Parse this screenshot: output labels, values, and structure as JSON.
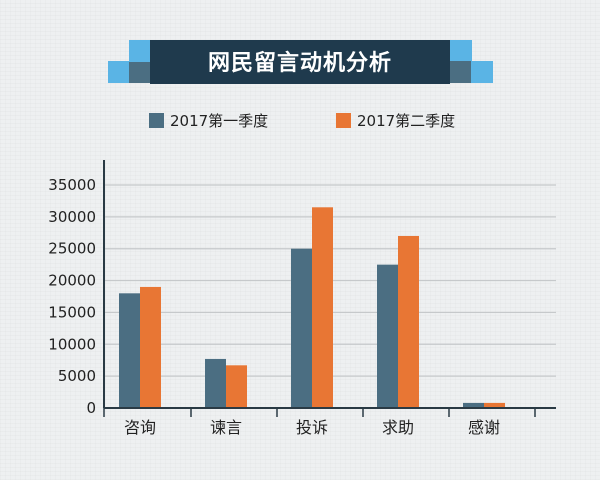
{
  "chart_data": {
    "type": "bar",
    "title": "网民留言动机分析",
    "categories": [
      "咨询",
      "谏言",
      "投诉",
      "求助",
      "感谢"
    ],
    "series": [
      {
        "name": "2017第一季度",
        "values": [
          18000,
          7700,
          25000,
          22500,
          800
        ],
        "color": "#4b6e82"
      },
      {
        "name": "2017第二季度",
        "values": [
          19000,
          6700,
          31500,
          27000,
          800
        ],
        "color": "#e87634"
      }
    ],
    "y_ticks": [
      "0",
      "5000",
      "10000",
      "15000",
      "20000",
      "25000",
      "30000",
      "35000"
    ],
    "ylim": [
      0,
      35000
    ],
    "grid": true,
    "legend_position": "top-center",
    "colors": {
      "title_bg": "#1f3a4d",
      "title_accent": "#5ab4e5",
      "axis": "#2a3a44",
      "grid": "#c6c9cb"
    }
  }
}
